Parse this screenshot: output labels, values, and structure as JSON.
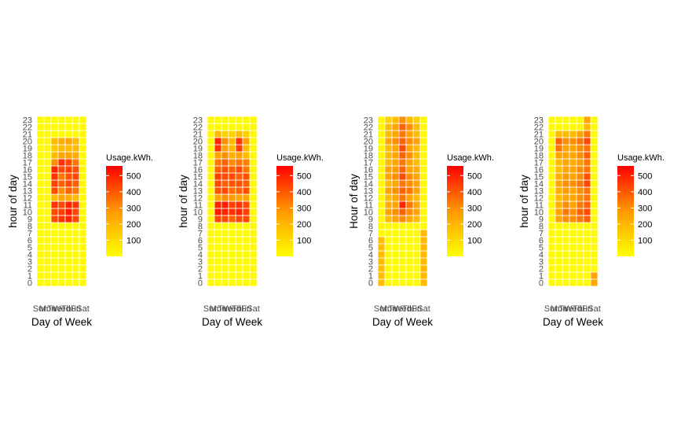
{
  "chart_data": {
    "type": "heatmap",
    "days": [
      "Sun",
      "Mon",
      "Tue",
      "Wed",
      "Thu",
      "Fri",
      "Sat"
    ],
    "hours": [
      0,
      1,
      2,
      3,
      4,
      5,
      6,
      7,
      8,
      9,
      10,
      11,
      12,
      13,
      14,
      15,
      16,
      17,
      18,
      19,
      20,
      21,
      22,
      23
    ],
    "color_scale": {
      "low": "#FFFF00",
      "high": "#FF0000",
      "min": 0,
      "max": 560
    },
    "panels": [
      {
        "xlabel": "Day of Week",
        "ylabel": "hour of day",
        "legend_title": "Usage.kWh.",
        "legend_ticks": [
          100,
          200,
          300,
          400,
          500
        ],
        "values": [
          [
            10,
            10,
            10,
            10,
            10,
            10,
            10
          ],
          [
            10,
            10,
            10,
            10,
            10,
            10,
            10
          ],
          [
            10,
            10,
            10,
            10,
            10,
            10,
            10
          ],
          [
            10,
            10,
            10,
            10,
            10,
            10,
            10
          ],
          [
            10,
            10,
            10,
            10,
            10,
            10,
            10
          ],
          [
            10,
            10,
            10,
            10,
            10,
            10,
            10
          ],
          [
            10,
            10,
            10,
            10,
            10,
            10,
            10
          ],
          [
            10,
            10,
            10,
            10,
            10,
            10,
            10
          ],
          [
            10,
            10,
            10,
            10,
            10,
            10,
            10
          ],
          [
            10,
            10,
            400,
            450,
            480,
            400,
            10
          ],
          [
            10,
            10,
            400,
            420,
            500,
            400,
            10
          ],
          [
            10,
            10,
            450,
            400,
            480,
            450,
            10
          ],
          [
            10,
            10,
            150,
            200,
            180,
            150,
            10
          ],
          [
            10,
            10,
            400,
            250,
            350,
            300,
            10
          ],
          [
            10,
            10,
            420,
            350,
            400,
            350,
            10
          ],
          [
            10,
            10,
            450,
            300,
            380,
            400,
            10
          ],
          [
            10,
            10,
            480,
            400,
            420,
            380,
            10
          ],
          [
            10,
            10,
            250,
            450,
            400,
            300,
            10
          ],
          [
            10,
            10,
            150,
            200,
            200,
            180,
            10
          ],
          [
            10,
            10,
            120,
            150,
            150,
            150,
            10
          ],
          [
            10,
            10,
            150,
            180,
            200,
            150,
            10
          ],
          [
            10,
            10,
            10,
            10,
            10,
            10,
            10
          ],
          [
            10,
            10,
            10,
            10,
            10,
            10,
            10
          ],
          [
            10,
            10,
            10,
            10,
            10,
            10,
            10
          ]
        ]
      },
      {
        "xlabel": "Day of Week",
        "ylabel": "hour of day",
        "legend_title": "Usage.kWh.",
        "legend_ticks": [
          100,
          200,
          300,
          400,
          500
        ],
        "values": [
          [
            10,
            10,
            10,
            10,
            10,
            10,
            10
          ],
          [
            10,
            10,
            10,
            10,
            10,
            10,
            10
          ],
          [
            10,
            10,
            10,
            10,
            10,
            10,
            10
          ],
          [
            10,
            10,
            10,
            10,
            10,
            10,
            10
          ],
          [
            10,
            10,
            10,
            10,
            10,
            10,
            10
          ],
          [
            10,
            10,
            10,
            10,
            10,
            10,
            10
          ],
          [
            10,
            10,
            10,
            10,
            10,
            10,
            10
          ],
          [
            10,
            10,
            10,
            10,
            10,
            10,
            10
          ],
          [
            10,
            10,
            10,
            10,
            10,
            10,
            10
          ],
          [
            10,
            400,
            400,
            350,
            400,
            400,
            10
          ],
          [
            10,
            500,
            480,
            450,
            480,
            420,
            10
          ],
          [
            10,
            480,
            500,
            420,
            450,
            400,
            10
          ],
          [
            10,
            200,
            250,
            220,
            200,
            200,
            10
          ],
          [
            10,
            380,
            400,
            320,
            350,
            380,
            10
          ],
          [
            10,
            400,
            350,
            380,
            380,
            350,
            10
          ],
          [
            10,
            420,
            400,
            400,
            350,
            380,
            10
          ],
          [
            10,
            350,
            380,
            350,
            400,
            300,
            10
          ],
          [
            10,
            300,
            350,
            250,
            300,
            280,
            10
          ],
          [
            10,
            200,
            250,
            180,
            200,
            150,
            10
          ],
          [
            10,
            450,
            200,
            150,
            420,
            150,
            10
          ],
          [
            10,
            480,
            250,
            150,
            450,
            200,
            10
          ],
          [
            10,
            150,
            100,
            100,
            150,
            100,
            10
          ],
          [
            10,
            10,
            10,
            10,
            10,
            10,
            10
          ],
          [
            10,
            10,
            10,
            10,
            10,
            10,
            10
          ]
        ]
      },
      {
        "xlabel": "Day of Week",
        "ylabel": "Hour of day",
        "legend_title": "Usage.kWh.",
        "legend_ticks": [
          100,
          200,
          300,
          400,
          500
        ],
        "values": [
          [
            150,
            10,
            10,
            10,
            10,
            10,
            150
          ],
          [
            150,
            10,
            10,
            10,
            10,
            10,
            150
          ],
          [
            150,
            10,
            10,
            10,
            10,
            10,
            150
          ],
          [
            150,
            10,
            10,
            10,
            10,
            10,
            150
          ],
          [
            150,
            10,
            10,
            10,
            10,
            10,
            150
          ],
          [
            150,
            10,
            10,
            10,
            10,
            10,
            150
          ],
          [
            150,
            10,
            10,
            10,
            10,
            10,
            150
          ],
          [
            10,
            10,
            10,
            10,
            10,
            10,
            150
          ],
          [
            10,
            10,
            10,
            10,
            10,
            10,
            10
          ],
          [
            10,
            150,
            200,
            250,
            200,
            150,
            10
          ],
          [
            10,
            200,
            250,
            350,
            250,
            200,
            10
          ],
          [
            10,
            180,
            200,
            480,
            300,
            200,
            10
          ],
          [
            10,
            150,
            200,
            300,
            200,
            150,
            10
          ],
          [
            10,
            200,
            250,
            350,
            300,
            200,
            10
          ],
          [
            10,
            150,
            200,
            300,
            250,
            200,
            10
          ],
          [
            10,
            200,
            250,
            400,
            250,
            200,
            10
          ],
          [
            10,
            200,
            220,
            350,
            200,
            180,
            10
          ],
          [
            10,
            150,
            200,
            300,
            200,
            150,
            10
          ],
          [
            10,
            150,
            200,
            350,
            250,
            150,
            10
          ],
          [
            10,
            150,
            200,
            400,
            200,
            150,
            10
          ],
          [
            10,
            200,
            250,
            350,
            250,
            200,
            10
          ],
          [
            10,
            150,
            200,
            300,
            200,
            150,
            10
          ],
          [
            10,
            150,
            200,
            350,
            250,
            150,
            10
          ],
          [
            10,
            100,
            150,
            250,
            150,
            100,
            10
          ]
        ]
      },
      {
        "xlabel": "Day of Week",
        "ylabel": "hour of day",
        "legend_title": "Usage.kWh.",
        "legend_ticks": [
          100,
          200,
          300,
          400,
          500
        ],
        "values": [
          [
            10,
            10,
            10,
            10,
            10,
            10,
            200
          ],
          [
            10,
            10,
            10,
            10,
            10,
            10,
            200
          ],
          [
            10,
            10,
            10,
            10,
            10,
            10,
            10
          ],
          [
            10,
            10,
            10,
            10,
            10,
            10,
            10
          ],
          [
            10,
            10,
            10,
            10,
            10,
            10,
            10
          ],
          [
            10,
            10,
            10,
            10,
            10,
            10,
            10
          ],
          [
            10,
            10,
            10,
            10,
            10,
            10,
            10
          ],
          [
            10,
            10,
            10,
            10,
            10,
            10,
            10
          ],
          [
            10,
            10,
            10,
            10,
            10,
            10,
            10
          ],
          [
            10,
            200,
            250,
            250,
            300,
            350,
            10
          ],
          [
            10,
            200,
            300,
            250,
            350,
            400,
            10
          ],
          [
            10,
            180,
            250,
            200,
            300,
            350,
            10
          ],
          [
            10,
            150,
            200,
            200,
            250,
            300,
            10
          ],
          [
            10,
            180,
            220,
            200,
            250,
            300,
            10
          ],
          [
            10,
            200,
            250,
            250,
            300,
            400,
            10
          ],
          [
            10,
            180,
            220,
            200,
            250,
            380,
            10
          ],
          [
            10,
            150,
            200,
            200,
            250,
            300,
            10
          ],
          [
            10,
            150,
            200,
            180,
            220,
            300,
            10
          ],
          [
            10,
            200,
            200,
            200,
            250,
            350,
            10
          ],
          [
            10,
            300,
            200,
            200,
            250,
            300,
            10
          ],
          [
            10,
            350,
            250,
            250,
            300,
            400,
            10
          ],
          [
            10,
            150,
            150,
            150,
            200,
            300,
            10
          ],
          [
            10,
            10,
            10,
            10,
            10,
            150,
            10
          ],
          [
            10,
            10,
            10,
            10,
            10,
            200,
            10
          ]
        ]
      }
    ]
  }
}
